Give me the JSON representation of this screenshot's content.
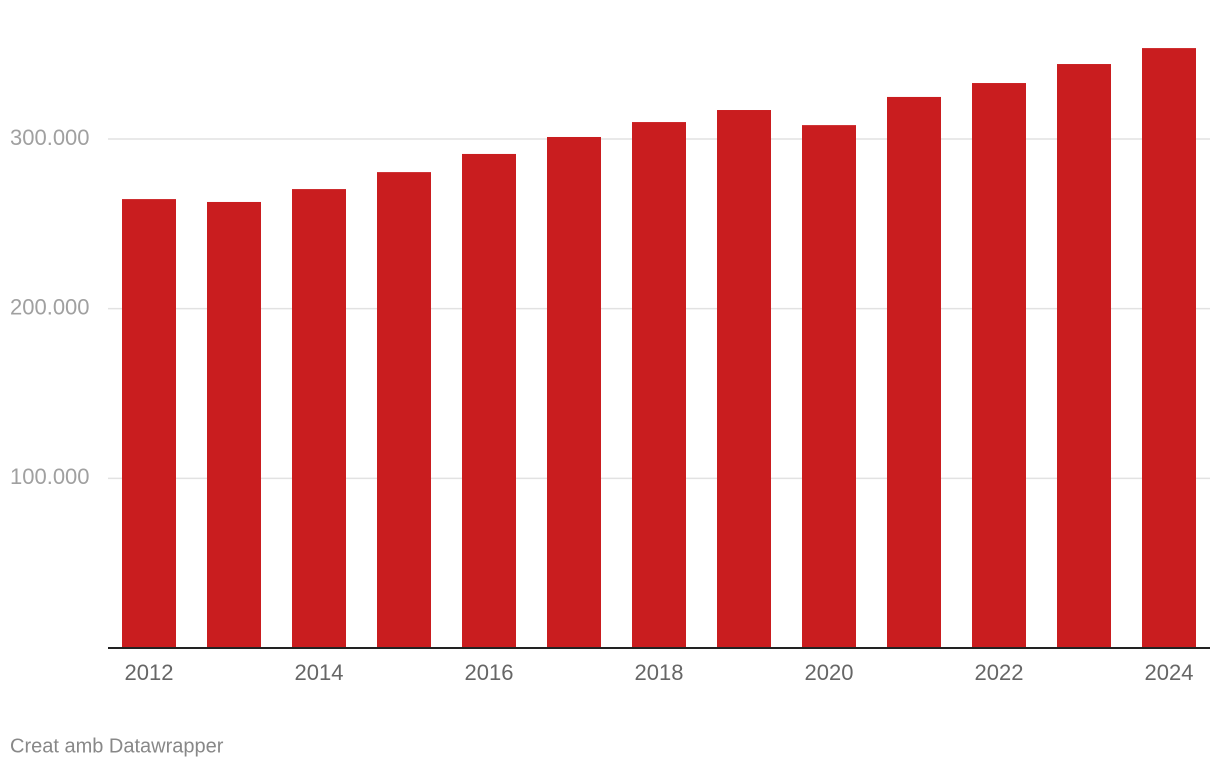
{
  "chart_data": {
    "type": "bar",
    "categories": [
      "2012",
      null,
      "2014",
      null,
      "2016",
      null,
      "2018",
      null,
      "2020",
      null,
      "2022",
      null,
      "2024"
    ],
    "values": [
      264600,
      262900,
      270500,
      280500,
      291200,
      301200,
      310000,
      317100,
      308200,
      324800,
      333000,
      344200,
      353600
    ],
    "color": "#c91d1f",
    "ylim": [
      0,
      380000
    ],
    "yticks": [
      {
        "value": 100000,
        "label": "100.000"
      },
      {
        "value": 200000,
        "label": "200.000"
      },
      {
        "value": 300000,
        "label": "300.000"
      }
    ],
    "grid": true,
    "footer": "Creat amb Datawrapper"
  }
}
